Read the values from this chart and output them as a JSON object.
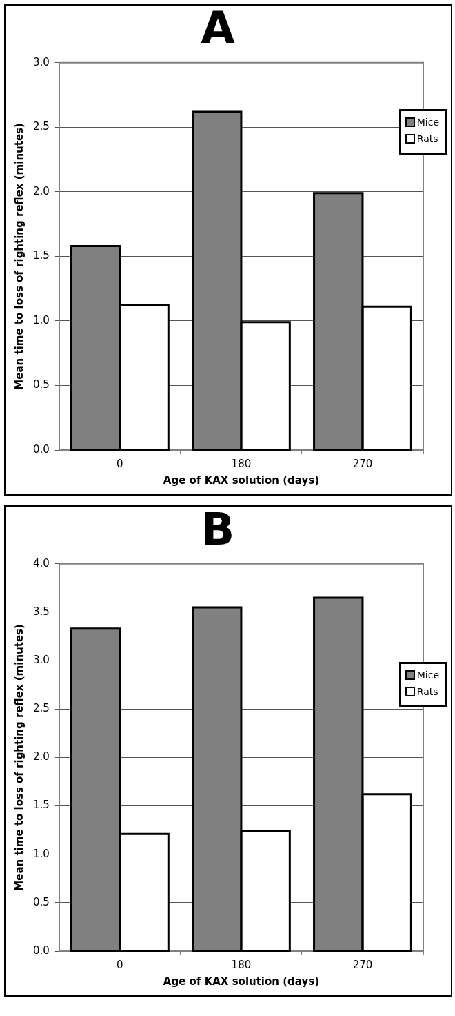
{
  "chart_data": [
    {
      "type": "bar",
      "title": "A",
      "xlabel": "Age of KAX solution (days)",
      "ylabel": "Mean time to loss of righting reflex (minutes)",
      "categories": [
        "0",
        "180",
        "270"
      ],
      "series": [
        {
          "name": "Mice",
          "color": "#808080",
          "values": [
            1.58,
            2.62,
            1.99
          ]
        },
        {
          "name": "Rats",
          "color": "#ffffff",
          "values": [
            1.12,
            0.99,
            1.11
          ]
        }
      ],
      "ylim": [
        0,
        3
      ],
      "yticks": [
        {
          "value": 0,
          "label": "0.0"
        },
        {
          "value": 0.5,
          "label": "0.5"
        },
        {
          "value": 1,
          "label": "1.0"
        },
        {
          "value": 1.5,
          "label": "1.5"
        },
        {
          "value": 2,
          "label": "2.0"
        },
        {
          "value": 2.5,
          "label": "2.5"
        },
        {
          "value": 3,
          "label": "3.0"
        }
      ],
      "grid": "y",
      "legend": "right"
    },
    {
      "type": "bar",
      "title": "B",
      "xlabel": "Age of KAX solution (days)",
      "ylabel": "Mean time to loss of righting reflex (minutes)",
      "categories": [
        "0",
        "180",
        "270"
      ],
      "series": [
        {
          "name": "Mice",
          "color": "#808080",
          "values": [
            3.33,
            3.55,
            3.65
          ]
        },
        {
          "name": "Rats",
          "color": "#ffffff",
          "values": [
            1.21,
            1.24,
            1.62
          ]
        }
      ],
      "ylim": [
        0,
        4
      ],
      "yticks": [
        {
          "value": 0,
          "label": "0.0"
        },
        {
          "value": 0.5,
          "label": "0.5"
        },
        {
          "value": 1,
          "label": "1.0"
        },
        {
          "value": 1.5,
          "label": "1.5"
        },
        {
          "value": 2,
          "label": "2.0"
        },
        {
          "value": 2.5,
          "label": "2.5"
        },
        {
          "value": 3,
          "label": "3.0"
        },
        {
          "value": 3.5,
          "label": "3.5"
        },
        {
          "value": 4,
          "label": "4.0"
        }
      ],
      "grid": "y",
      "legend": "right"
    }
  ]
}
